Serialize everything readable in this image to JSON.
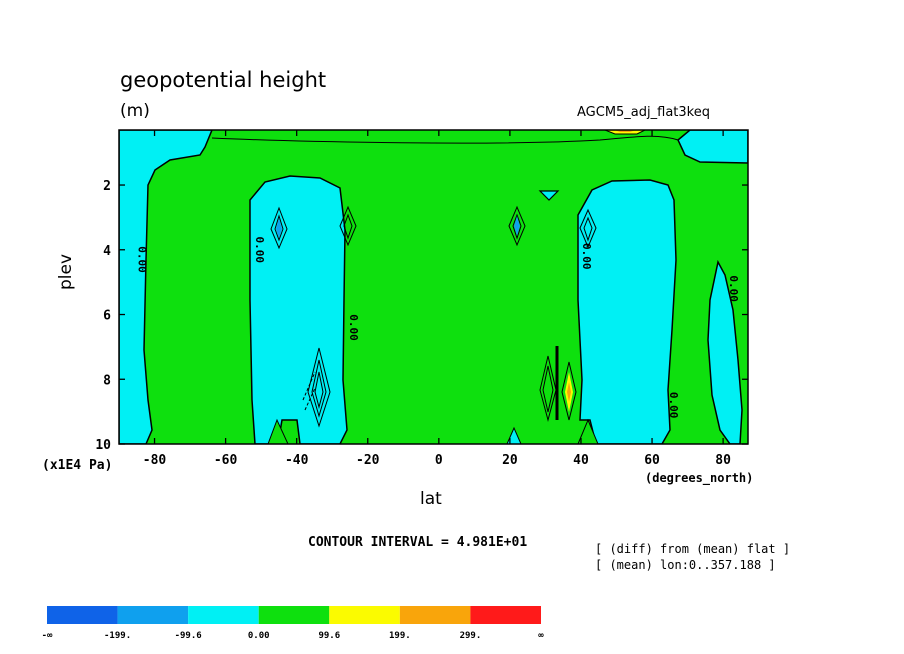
{
  "header": {
    "title": "geopotential height",
    "units": "(m)",
    "dataset": "AGCM5_adj_flat3keq"
  },
  "axes": {
    "ylabel": "plev",
    "ylabel_unit": "(x1E4 Pa)",
    "xlabel": "lat",
    "xlabel_unit": "(degrees_north)"
  },
  "footer": {
    "contour_interval": "CONTOUR INTERVAL = 4.981E+01",
    "note1": "[ (diff) from (mean) flat ]",
    "note2": "[ (mean) lon:0..357.188 ]"
  },
  "contour_labels": [
    "0.00",
    "0.00",
    "0.00",
    "0.00",
    "0.00",
    "0.00",
    "0.00"
  ],
  "chart_data": {
    "type": "heatmap",
    "title": "geopotential height",
    "units": "(m)",
    "xlabel": "lat",
    "ylabel": "plev",
    "x_unit": "(degrees_north)",
    "y_unit": "(x1E4 Pa)",
    "xlim": [
      -90,
      87
    ],
    "ylim": [
      10,
      0.3
    ],
    "y_reversed": true,
    "x_ticks": [
      -80,
      -60,
      -40,
      -20,
      0,
      20,
      40,
      60,
      80
    ],
    "x_tick_labels": [
      "-80",
      "-60",
      "-40",
      "-20",
      "0",
      "20",
      "40",
      "60",
      "80"
    ],
    "y_ticks": [
      2,
      4,
      6,
      8,
      10
    ],
    "y_tick_labels": [
      "2",
      "4",
      "6",
      "8",
      "10"
    ],
    "contour_interval": 49.81,
    "colorbar": {
      "colors": [
        "#0f63e8",
        "#0fa0ee",
        "#00f0f4",
        "#0ee00e",
        "#fbfb00",
        "#f9a50b",
        "#ff1a1a"
      ],
      "labels": [
        "-∞",
        "-199.",
        "-99.6",
        "0.00",
        "99.6",
        "199.",
        "299.",
        "∞"
      ]
    },
    "regions": [
      {
        "level": "-99.6 to 0",
        "color": "#00f0f4",
        "description": "broad negative columns near 40S-25S and 35N-65N"
      },
      {
        "level": "0 to 99.6",
        "color": "#0ee00e",
        "description": "dominant background field"
      },
      {
        "level": "99.6 to 199",
        "color": "#fbfb00",
        "description": "small cell near top at ~60N and near 38N, 8.5e4 Pa"
      }
    ]
  }
}
